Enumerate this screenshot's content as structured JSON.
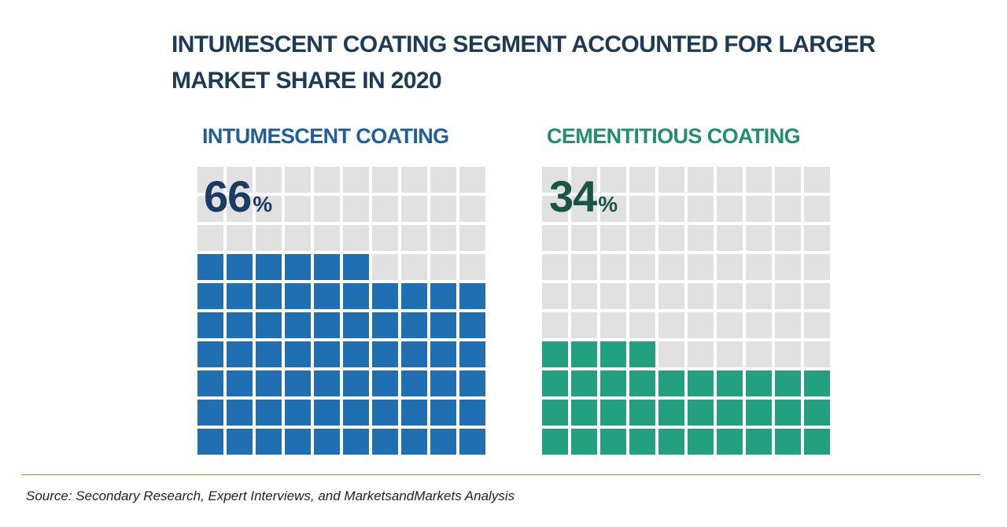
{
  "chart_data": {
    "type": "waffle",
    "title": "INTUMESCENT COATING SEGMENT ACCOUNTED FOR LARGER MARKET SHARE IN 2020",
    "grid": {
      "rows": 10,
      "cols": 10
    },
    "empty_color": "#e1e1e1",
    "segments": [
      {
        "label": "INTUMESCENT COATING",
        "value": 66,
        "value_text": "66",
        "unit": "%",
        "color": "#1f6fb2",
        "label_color": "#1f5e9c",
        "value_color": "#1a3c63"
      },
      {
        "label": "CEMENTITIOUS COATING",
        "value": 34,
        "value_text": "34",
        "unit": "%",
        "color": "#22a07f",
        "label_color": "#1f8f6d",
        "value_color": "#1a5546"
      }
    ]
  },
  "footer": {
    "source": "Source: Secondary Research, Expert Interviews, and MarketsandMarkets Analysis"
  }
}
